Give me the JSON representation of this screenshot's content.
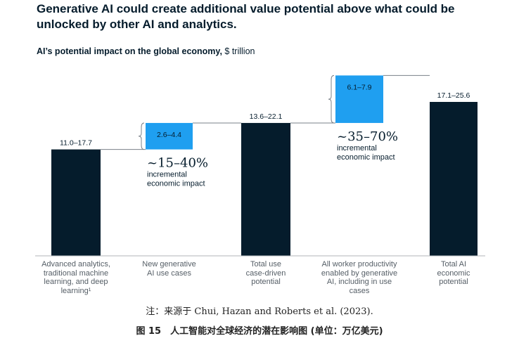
{
  "headline": "Generative AI could create additional value potential above what could be unlocked by other AI and analytics.",
  "subhead_bold": "AI’s potential impact on the global economy,",
  "subhead_unit": "$ trillion",
  "chart_data": {
    "type": "bar",
    "subtype": "waterfall",
    "categories": [
      "Advanced analytics, traditional machine learning, and deep learning¹",
      "New generative AI use cases",
      "Total use case-driven potential",
      "All worker productivity enabled by generative AI, including in use cases",
      "Total AI economic potential"
    ],
    "ranges": [
      [
        11.0,
        17.7
      ],
      [
        2.6,
        4.4
      ],
      [
        13.6,
        22.1
      ],
      [
        6.1,
        7.9
      ],
      [
        17.1,
        25.6
      ]
    ],
    "value_labels": [
      "11.0–17.7",
      "2.6–4.4",
      "13.6–22.1",
      "6.1–7.9",
      "17.1–25.6"
    ],
    "bar_kinds": [
      "total",
      "increment",
      "total",
      "increment",
      "total"
    ],
    "annotations": [
      {
        "big": "~15–40%",
        "text": "incremental\neconomic impact"
      },
      {
        "big": "~35–70%",
        "text": "incremental\neconomic impact"
      }
    ],
    "colors": {
      "total": "#051c2c",
      "increment": "#1f9ff0",
      "connector": "#7a8088",
      "baseline": "#b0b4b8"
    }
  },
  "source": "注：来源于 Chui, Hazan and Roberts et al. (2023).",
  "figure_caption": "图 15　人工智能对全球经济的潜在影响图 (单位：万亿美元)"
}
